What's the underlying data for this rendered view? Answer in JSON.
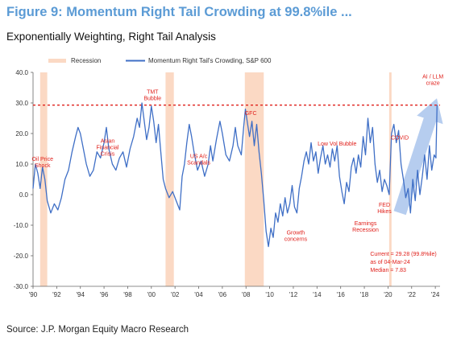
{
  "header": {
    "title": "Figure 9: Momentum Right Tail Crowding at 99.8%ile ...",
    "subtitle": "Exponentially Weighting, Right Tail Analysis"
  },
  "footer": {
    "source": "Source: J.P. Morgan Equity Macro Research"
  },
  "colors": {
    "title": "#5b9bd5",
    "series": "#3f6fc6",
    "recession": "#fbd9c4",
    "threshold": "#e0201b",
    "arrow": "#a9c4ec",
    "annotation": "#e0201b"
  },
  "chart_data": {
    "type": "line",
    "title": "",
    "xlabel": "",
    "ylabel": "",
    "xlim": [
      1990.0,
      2024.4
    ],
    "ylim": [
      -30,
      40
    ],
    "yticks": [
      {
        "value": 40,
        "label": "40.0"
      },
      {
        "value": 30,
        "label": "30.0"
      },
      {
        "value": 20,
        "label": "20.0"
      },
      {
        "value": 10,
        "label": "10.0"
      },
      {
        "value": 0,
        "label": "0.0"
      },
      {
        "value": -10,
        "label": "-10.0"
      },
      {
        "value": -20,
        "label": "-20.0"
      },
      {
        "value": -30,
        "label": "-30.0"
      }
    ],
    "xticks": [
      {
        "value": 1990,
        "label": "'90"
      },
      {
        "value": 1992,
        "label": "'92"
      },
      {
        "value": 1994,
        "label": "'94"
      },
      {
        "value": 1996,
        "label": "'96"
      },
      {
        "value": 1998,
        "label": "'98"
      },
      {
        "value": 2000,
        "label": "'00"
      },
      {
        "value": 2002,
        "label": "'02"
      },
      {
        "value": 2004,
        "label": "'04"
      },
      {
        "value": 2006,
        "label": "'06"
      },
      {
        "value": 2008,
        "label": "'08"
      },
      {
        "value": 2010,
        "label": "'10"
      },
      {
        "value": 2012,
        "label": "'12"
      },
      {
        "value": 2014,
        "label": "'14"
      },
      {
        "value": 2016,
        "label": "'16"
      },
      {
        "value": 2018,
        "label": "'18"
      },
      {
        "value": 2020,
        "label": "'20"
      },
      {
        "value": 2022,
        "label": "'22"
      },
      {
        "value": 2024,
        "label": "'24"
      }
    ],
    "grid": false,
    "legend": {
      "position": "top",
      "recession_label": "Recession",
      "series_label": "Momentum Right Tail's Crowding, S&P 600"
    },
    "recessions": [
      {
        "start": 1990.6,
        "end": 1991.2
      },
      {
        "start": 2001.2,
        "end": 2001.9
      },
      {
        "start": 2007.9,
        "end": 2009.5
      },
      {
        "start": 2020.1,
        "end": 2020.3
      }
    ],
    "threshold": 29.28,
    "series": [
      {
        "name": "Momentum Right Tail's Crowding, S&P 600",
        "points": [
          [
            1990.0,
            2
          ],
          [
            1990.2,
            10
          ],
          [
            1990.4,
            7
          ],
          [
            1990.6,
            2
          ],
          [
            1990.8,
            9
          ],
          [
            1991.0,
            5
          ],
          [
            1991.2,
            -2
          ],
          [
            1991.5,
            -6
          ],
          [
            1991.8,
            -3
          ],
          [
            1992.1,
            -5
          ],
          [
            1992.4,
            -1
          ],
          [
            1992.7,
            5
          ],
          [
            1993.0,
            8
          ],
          [
            1993.3,
            14
          ],
          [
            1993.6,
            19
          ],
          [
            1993.8,
            22
          ],
          [
            1994.0,
            20
          ],
          [
            1994.2,
            16
          ],
          [
            1994.5,
            10
          ],
          [
            1994.8,
            6
          ],
          [
            1995.1,
            8
          ],
          [
            1995.4,
            14
          ],
          [
            1995.7,
            12
          ],
          [
            1996.0,
            17
          ],
          [
            1996.2,
            22
          ],
          [
            1996.4,
            15
          ],
          [
            1996.7,
            10
          ],
          [
            1997.0,
            8
          ],
          [
            1997.3,
            12
          ],
          [
            1997.6,
            14
          ],
          [
            1997.9,
            9
          ],
          [
            1998.2,
            15
          ],
          [
            1998.5,
            19
          ],
          [
            1998.8,
            25
          ],
          [
            1999.0,
            22
          ],
          [
            1999.2,
            30
          ],
          [
            1999.4,
            24
          ],
          [
            1999.6,
            18
          ],
          [
            1999.8,
            22
          ],
          [
            2000.0,
            29
          ],
          [
            2000.2,
            24
          ],
          [
            2000.4,
            17
          ],
          [
            2000.6,
            23
          ],
          [
            2000.8,
            14
          ],
          [
            2001.0,
            5
          ],
          [
            2001.2,
            2
          ],
          [
            2001.5,
            -1
          ],
          [
            2001.8,
            1
          ],
          [
            2002.1,
            -2
          ],
          [
            2002.4,
            -5
          ],
          [
            2002.6,
            6
          ],
          [
            2002.8,
            10
          ],
          [
            2003.0,
            17
          ],
          [
            2003.2,
            23
          ],
          [
            2003.4,
            19
          ],
          [
            2003.6,
            14
          ],
          [
            2003.9,
            8
          ],
          [
            2004.2,
            11
          ],
          [
            2004.5,
            6
          ],
          [
            2004.8,
            10
          ],
          [
            2005.0,
            16
          ],
          [
            2005.2,
            11
          ],
          [
            2005.5,
            18
          ],
          [
            2005.8,
            24
          ],
          [
            2006.0,
            20
          ],
          [
            2006.3,
            13
          ],
          [
            2006.6,
            11
          ],
          [
            2006.9,
            16
          ],
          [
            2007.1,
            22
          ],
          [
            2007.3,
            16
          ],
          [
            2007.6,
            13
          ],
          [
            2007.8,
            22
          ],
          [
            2007.95,
            28
          ],
          [
            2008.1,
            24
          ],
          [
            2008.3,
            19
          ],
          [
            2008.5,
            24
          ],
          [
            2008.7,
            16
          ],
          [
            2008.9,
            23
          ],
          [
            2009.1,
            14
          ],
          [
            2009.3,
            7
          ],
          [
            2009.5,
            -2
          ],
          [
            2009.7,
            -12
          ],
          [
            2009.9,
            -17
          ],
          [
            2010.1,
            -11
          ],
          [
            2010.3,
            -14
          ],
          [
            2010.5,
            -6
          ],
          [
            2010.7,
            -9
          ],
          [
            2010.9,
            -3
          ],
          [
            2011.1,
            -7
          ],
          [
            2011.3,
            -1
          ],
          [
            2011.5,
            -6
          ],
          [
            2011.7,
            -3
          ],
          [
            2011.9,
            3
          ],
          [
            2012.1,
            -4
          ],
          [
            2012.3,
            -6
          ],
          [
            2012.5,
            2
          ],
          [
            2012.7,
            6
          ],
          [
            2012.9,
            11
          ],
          [
            2013.1,
            14
          ],
          [
            2013.3,
            10
          ],
          [
            2013.5,
            17
          ],
          [
            2013.7,
            11
          ],
          [
            2013.9,
            14
          ],
          [
            2014.1,
            7
          ],
          [
            2014.3,
            12
          ],
          [
            2014.5,
            16
          ],
          [
            2014.7,
            10
          ],
          [
            2014.9,
            13
          ],
          [
            2015.1,
            9
          ],
          [
            2015.3,
            15
          ],
          [
            2015.5,
            11
          ],
          [
            2015.7,
            16
          ],
          [
            2015.9,
            6
          ],
          [
            2016.1,
            1
          ],
          [
            2016.3,
            -3
          ],
          [
            2016.5,
            4
          ],
          [
            2016.7,
            1
          ],
          [
            2016.9,
            9
          ],
          [
            2017.1,
            12
          ],
          [
            2017.3,
            7
          ],
          [
            2017.5,
            13
          ],
          [
            2017.7,
            9
          ],
          [
            2017.9,
            19
          ],
          [
            2018.1,
            13
          ],
          [
            2018.3,
            25
          ],
          [
            2018.5,
            17
          ],
          [
            2018.7,
            22
          ],
          [
            2018.9,
            10
          ],
          [
            2019.1,
            4
          ],
          [
            2019.3,
            8
          ],
          [
            2019.5,
            1
          ],
          [
            2019.7,
            5
          ],
          [
            2019.9,
            3
          ],
          [
            2020.1,
            0
          ],
          [
            2020.3,
            20
          ],
          [
            2020.5,
            23
          ],
          [
            2020.7,
            17
          ],
          [
            2020.9,
            21
          ],
          [
            2021.1,
            10
          ],
          [
            2021.3,
            5
          ],
          [
            2021.5,
            -1
          ],
          [
            2021.7,
            2
          ],
          [
            2021.9,
            -6
          ],
          [
            2022.1,
            5
          ],
          [
            2022.3,
            -2
          ],
          [
            2022.5,
            8
          ],
          [
            2022.7,
            0
          ],
          [
            2022.9,
            6
          ],
          [
            2023.1,
            13
          ],
          [
            2023.3,
            5
          ],
          [
            2023.5,
            16
          ],
          [
            2023.7,
            8
          ],
          [
            2023.9,
            13
          ],
          [
            2024.05,
            12
          ],
          [
            2024.15,
            29.28
          ]
        ]
      }
    ],
    "annotations": [
      {
        "lines": [
          "Oil Price",
          "Shock"
        ],
        "x": 1990.8,
        "y": 11
      },
      {
        "lines": [
          "Asian",
          "Financial",
          "Crisis"
        ],
        "x": 1996.3,
        "y": 17
      },
      {
        "lines": [
          "TMT",
          "Bubble"
        ],
        "x": 2000.1,
        "y": 33
      },
      {
        "lines": [
          "US A/c",
          "Scandals"
        ],
        "x": 2004.0,
        "y": 12
      },
      {
        "lines": [
          "GFC"
        ],
        "x": 2008.4,
        "y": 26
      },
      {
        "lines": [
          "Low Vol Bubble"
        ],
        "x": 2015.7,
        "y": 16
      },
      {
        "lines": [
          "COVID"
        ],
        "x": 2021.0,
        "y": 18
      },
      {
        "lines": [
          "Growth",
          "concerns"
        ],
        "x": 2012.2,
        "y": -13
      },
      {
        "lines": [
          "Earnings",
          "Recession"
        ],
        "x": 2018.1,
        "y": -10
      },
      {
        "lines": [
          "FED",
          "Hikes"
        ],
        "x": 2019.7,
        "y": -4
      },
      {
        "lines": [
          "AI / LLM",
          "craze"
        ],
        "x": 2023.8,
        "y": 38
      }
    ],
    "stat_box": {
      "lines": [
        "Current = 29.28 (99.8%ile)",
        "as of 04-Mar-24",
        "Median = 7.83"
      ],
      "x": 2018.5,
      "y": -20
    }
  }
}
